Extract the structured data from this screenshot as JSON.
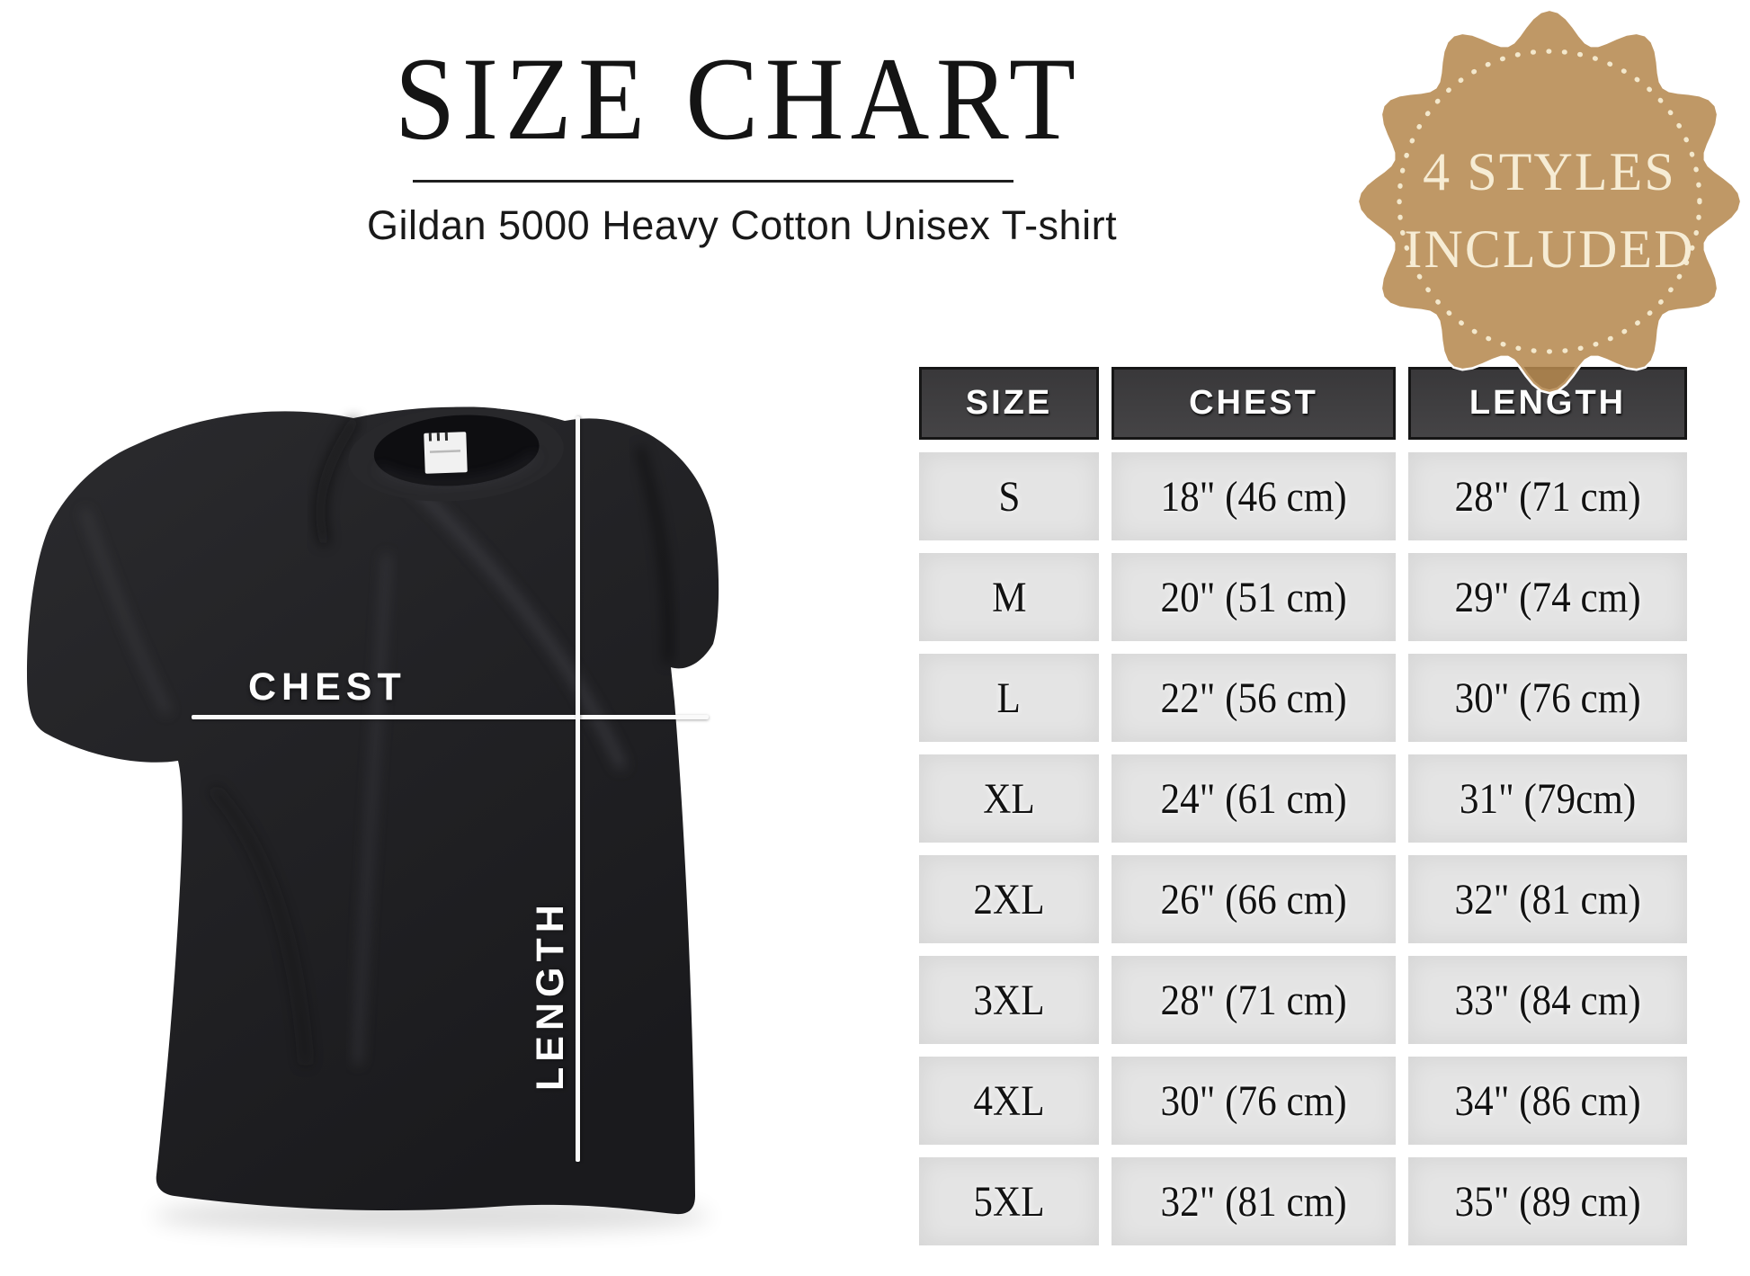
{
  "header": {
    "title": "SIZE CHART",
    "subtitle": "Gildan 5000 Heavy Cotton Unisex T-shirt"
  },
  "badge": {
    "line1": "4 STYLES",
    "line2": "INCLUDED",
    "bg_color": "#b5894f",
    "text_color": "#f6ecd4"
  },
  "diagram": {
    "product": "black unisex t-shirt",
    "chest_label": "CHEST",
    "length_label": "LENGTH"
  },
  "size_table": {
    "columns": [
      "SIZE",
      "CHEST",
      "LENGTH"
    ],
    "header_bg": "#3d3d3d",
    "cell_bg": "#e4e4e4",
    "rows": [
      {
        "size": "S",
        "chest": "18\" (46 cm)",
        "length": "28\" (71 cm)"
      },
      {
        "size": "M",
        "chest": "20\" (51 cm)",
        "length": "29\" (74 cm)"
      },
      {
        "size": "L",
        "chest": "22\" (56 cm)",
        "length": "30\" (76 cm)"
      },
      {
        "size": "XL",
        "chest": "24\" (61 cm)",
        "length": "31\" (79cm)"
      },
      {
        "size": "2XL",
        "chest": "26\" (66 cm)",
        "length": "32\" (81 cm)"
      },
      {
        "size": "3XL",
        "chest": "28\" (71 cm)",
        "length": "33\" (84 cm)"
      },
      {
        "size": "4XL",
        "chest": "30\" (76 cm)",
        "length": "34\" (86 cm)"
      },
      {
        "size": "5XL",
        "chest": "32\" (81 cm)",
        "length": "35\" (89 cm)"
      }
    ]
  }
}
